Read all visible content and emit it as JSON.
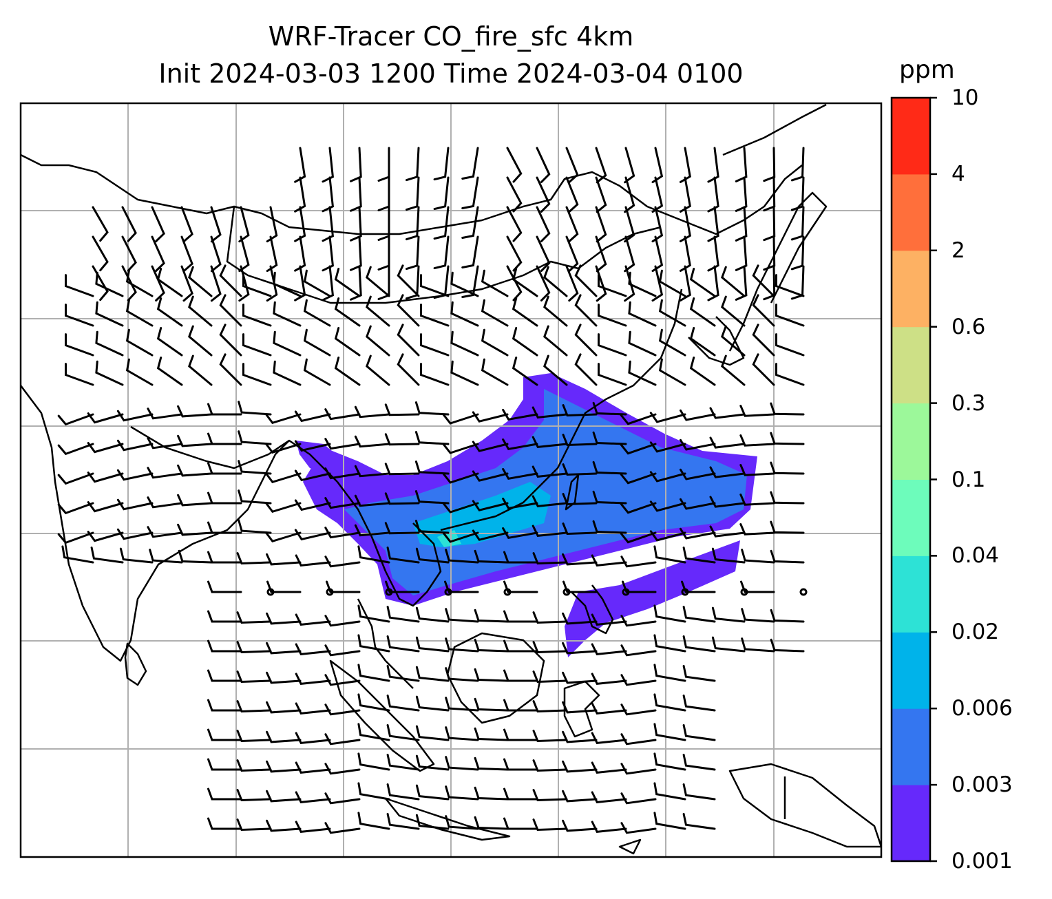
{
  "title_line1": "WRF-Tracer CO_fire_sfc 4km",
  "title_line2": "Init 2024-03-03 1200 Time 2024-03-04 0100",
  "colorbar": {
    "unit": "ppm",
    "levels": [
      "0.001",
      "0.003",
      "0.006",
      "0.02",
      "0.04",
      "0.1",
      "0.3",
      "0.6",
      "2",
      "4",
      "10"
    ],
    "colors": [
      "#6629fb",
      "#3476f0",
      "#00b3ea",
      "#2de2d6",
      "#6dfcbb",
      "#9cf89a",
      "#cde086",
      "#fdb163",
      "#ff6f3b",
      "#ff2a17"
    ]
  },
  "map": {
    "gridline_color": "#b0b0b0",
    "coastline_color": "#000000",
    "plume_colors": {
      "outer": "#6629fb",
      "mid": "#3476f0",
      "core": "#00b3ea",
      "peak": "#2de2d6"
    }
  }
}
